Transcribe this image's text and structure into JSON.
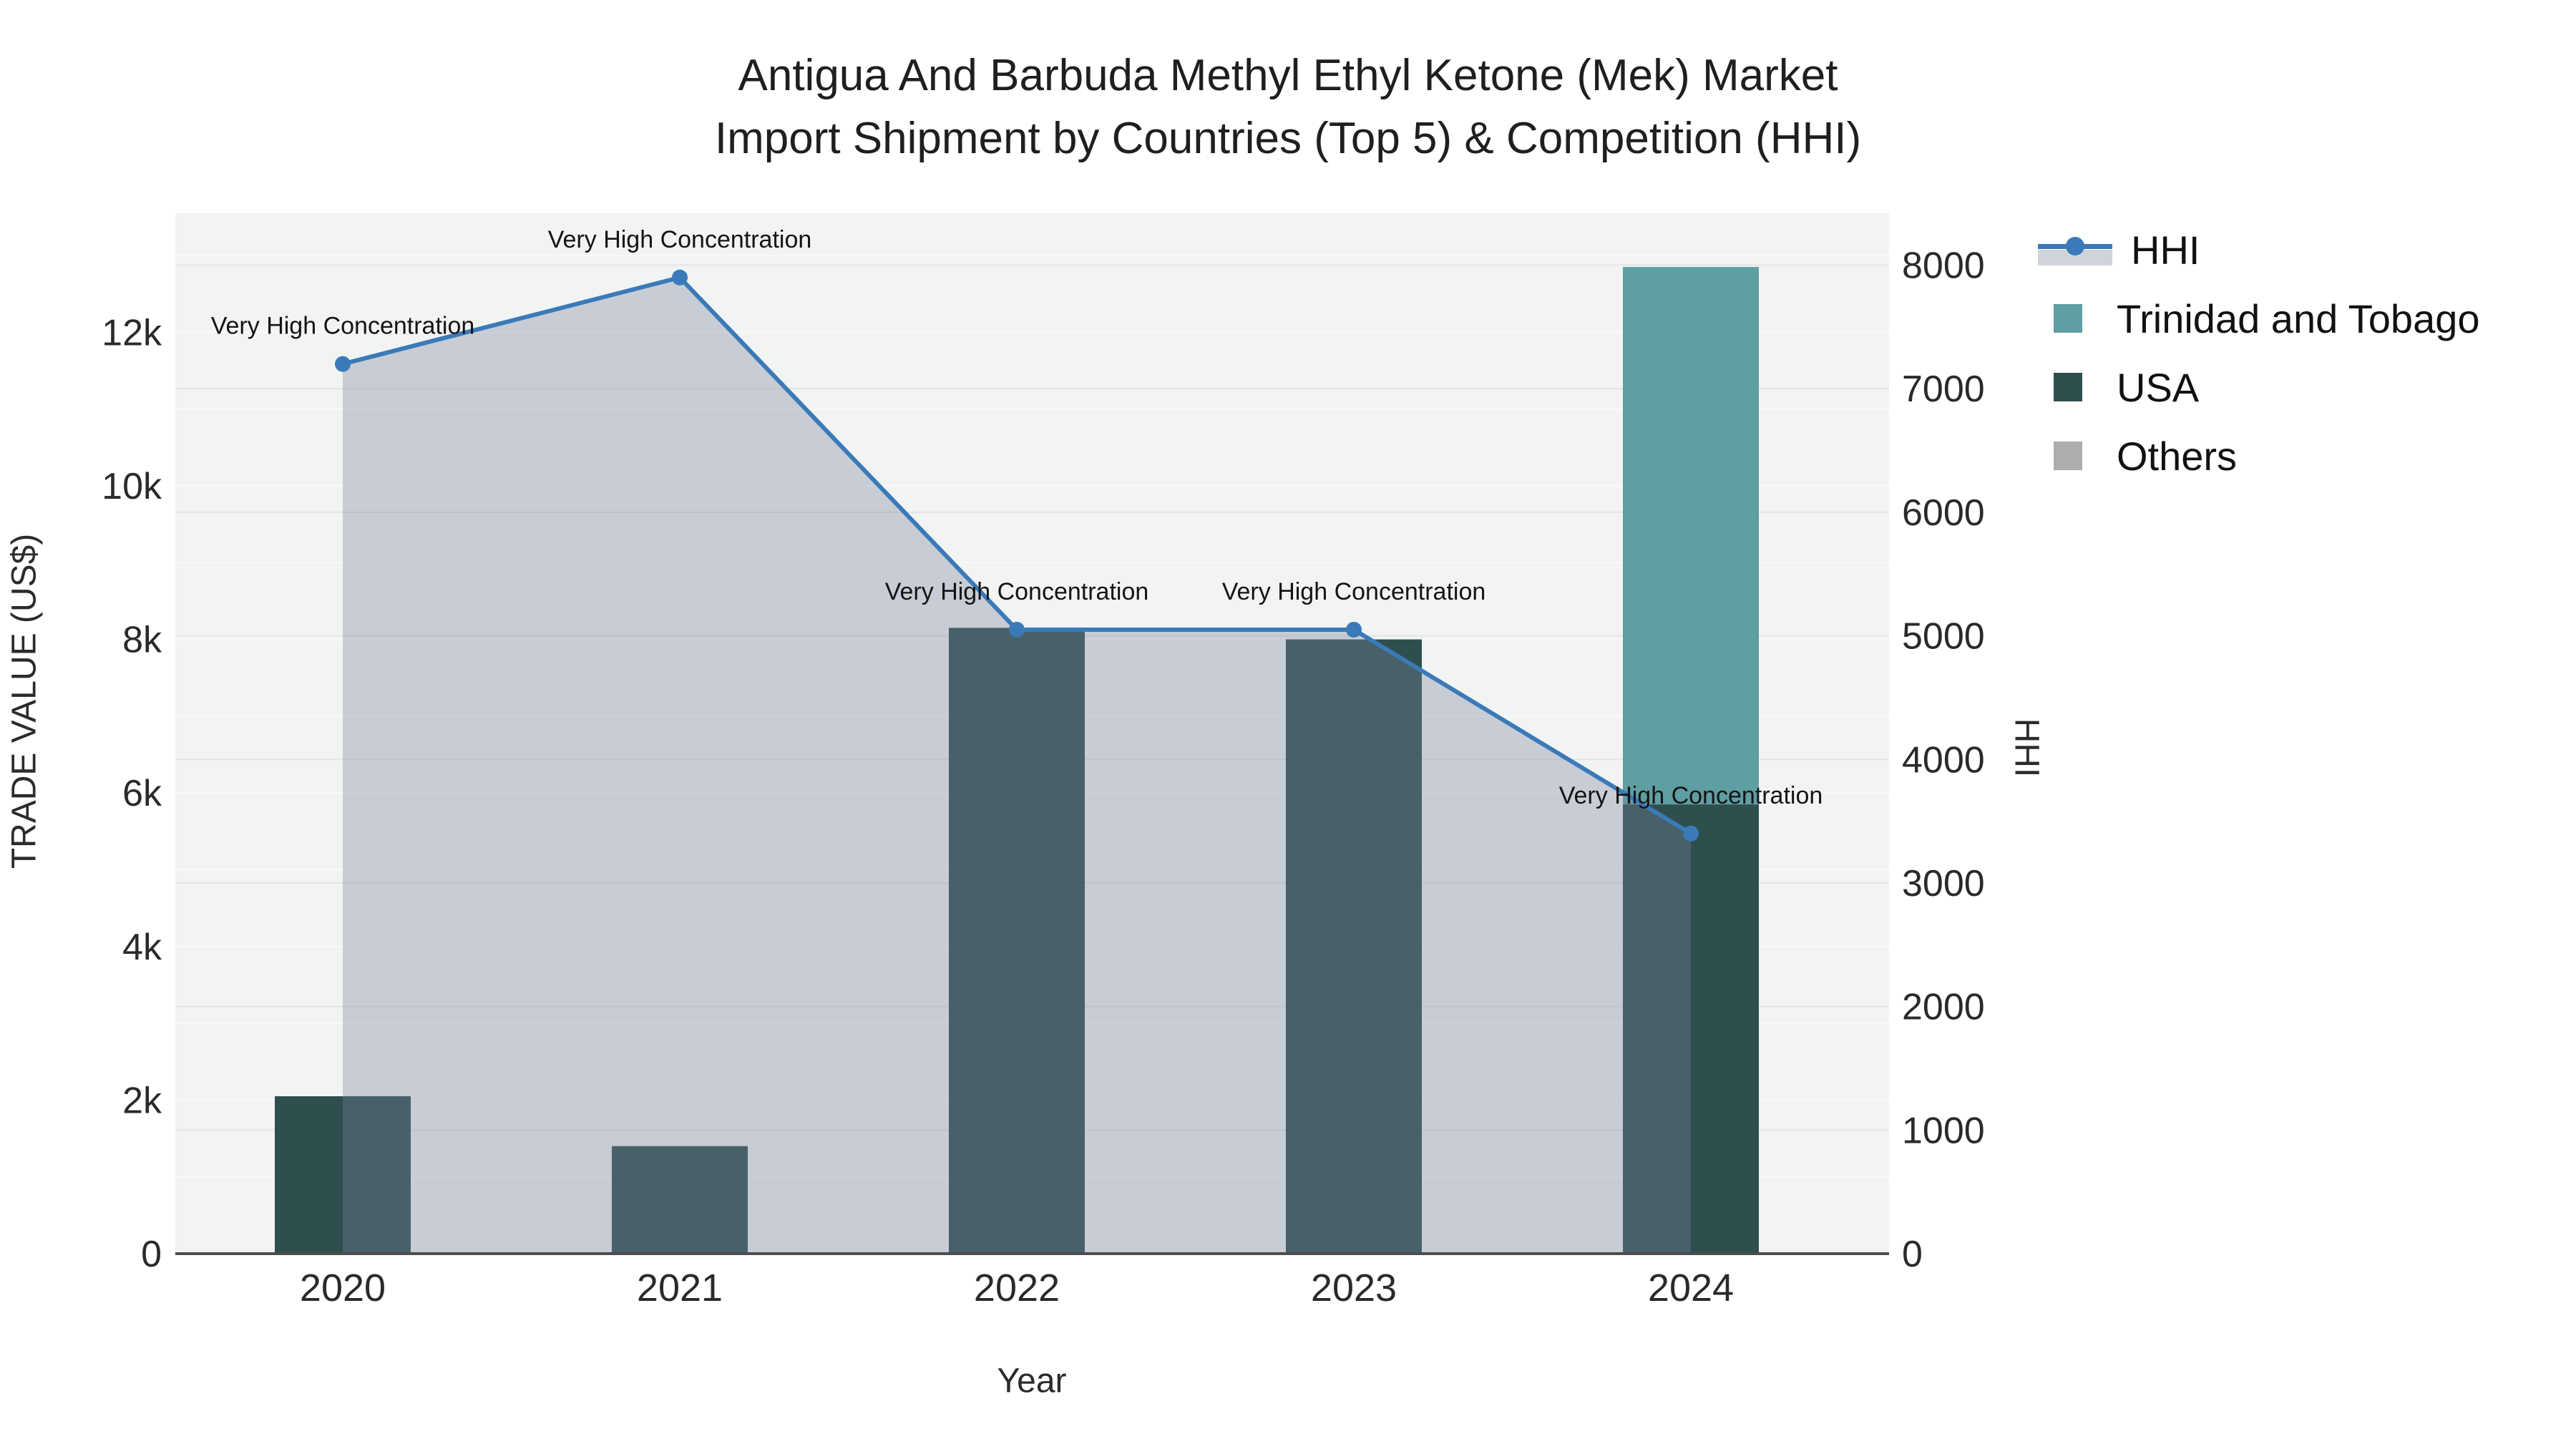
{
  "title": {
    "line1": "Antigua And Barbuda Methyl Ethyl Ketone (Mek) Market",
    "line2": "Import Shipment by Countries (Top 5) & Competition (HHI)"
  },
  "legend": {
    "items": [
      {
        "label": "HHI",
        "type": "line"
      },
      {
        "label": "Trinidad and Tobago",
        "type": "square"
      },
      {
        "label": "USA",
        "type": "square"
      },
      {
        "label": "Others",
        "type": "square"
      }
    ]
  },
  "colors": {
    "hhi_line": "#3A7AB8",
    "hhi_fill": "rgba(121,130,153,0.34)",
    "hhi_fill_legend_band": "#CFD4DC",
    "trinidad": "#5F9EA2",
    "usa": "#2F4F4F",
    "others": "#ADADAD",
    "plot_bg": "#F2F3F3",
    "grid_right": "#E2E4E6",
    "grid_left": "#F8F9F9",
    "axis_line": "#4D4D4D",
    "tick_text": "#2A2A2A",
    "annotation_text": "#141414"
  },
  "chart_data": {
    "type": "bar+line",
    "title": "Antigua And Barbuda Methyl Ethyl Ketone (Mek) Market Import Shipment by Countries (Top 5) & Competition (HHI)",
    "categories": [
      "2020",
      "2021",
      "2022",
      "2023",
      "2024"
    ],
    "bar_series": [
      {
        "name": "Trinidad and Tobago",
        "color": "#5F9EA2",
        "values": [
          0,
          0,
          0,
          0,
          12850
        ]
      },
      {
        "name": "USA",
        "color": "#2F4F4F",
        "values": [
          2050,
          1400,
          8150,
          8000,
          5850
        ]
      },
      {
        "name": "Others",
        "color": "#ADADAD",
        "values": [
          0,
          0,
          0,
          0,
          0
        ]
      }
    ],
    "line_series": {
      "name": "HHI",
      "axis": "right",
      "color": "#3A7AB8",
      "fill": "rgba(121,130,153,0.34)",
      "values": [
        7200,
        7900,
        5050,
        5050,
        3400
      ]
    },
    "annotations": [
      {
        "x": "2020",
        "text": "Very High Concentration"
      },
      {
        "x": "2021",
        "text": "Very High Concentration"
      },
      {
        "x": "2022",
        "text": "Very High Concentration"
      },
      {
        "x": "2023",
        "text": "Very High Concentration"
      },
      {
        "x": "2024",
        "text": "Very High Concentration"
      }
    ],
    "left_axis": {
      "title": "TRADE VALUE (US$)",
      "ticks": [
        [
          0,
          "0"
        ],
        [
          2000,
          "2k"
        ],
        [
          4000,
          "4k"
        ],
        [
          6000,
          "6k"
        ],
        [
          8000,
          "8k"
        ],
        [
          10000,
          "10k"
        ],
        [
          12000,
          "12k"
        ]
      ],
      "range": [
        0,
        13550
      ],
      "grid_step": 1000
    },
    "right_axis": {
      "title": "HHI",
      "ticks": [
        [
          0,
          "0"
        ],
        [
          1000,
          "1000"
        ],
        [
          2000,
          "2000"
        ],
        [
          3000,
          "3000"
        ],
        [
          4000,
          "4000"
        ],
        [
          5000,
          "5000"
        ],
        [
          6000,
          "6000"
        ],
        [
          7000,
          "7000"
        ],
        [
          8000,
          "8000"
        ]
      ],
      "range": [
        0,
        8420
      ],
      "grid_step": 1000
    },
    "x_title": "Year",
    "legend_position": "right",
    "grid": true
  }
}
